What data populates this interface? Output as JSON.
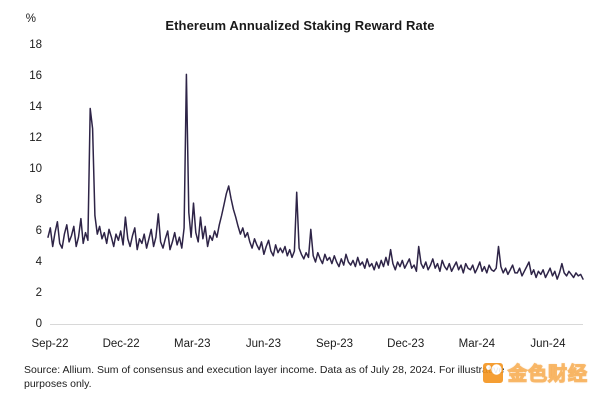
{
  "chart_data": {
    "type": "line",
    "title": "Ethereum Annualized Staking Reward Rate",
    "unit_label": "%",
    "ylabel": "%",
    "xlabel": "",
    "ylim": [
      0,
      18
    ],
    "y_ticks": [
      0,
      2,
      4,
      6,
      8,
      10,
      12,
      14,
      16,
      18
    ],
    "x_ticks": [
      "Sep-22",
      "Dec-22",
      "Mar-23",
      "Jun-23",
      "Sep-23",
      "Dec-23",
      "Mar-24",
      "Jun-24"
    ],
    "grid": false,
    "legend_position": "none",
    "line_color": "#2e2447",
    "axis_line_color": "#d8d8d8",
    "points_per_month": 10,
    "series": [
      {
        "name": "Annualized staking reward rate (%)",
        "values": [
          5.6,
          6.2,
          5.0,
          5.9,
          6.6,
          5.2,
          4.9,
          5.8,
          6.4,
          5.3,
          5.7,
          6.3,
          5.0,
          5.6,
          6.8,
          5.2,
          5.9,
          5.4,
          13.9,
          12.6,
          7.0,
          5.8,
          6.3,
          5.5,
          5.9,
          5.2,
          6.1,
          5.6,
          5.0,
          5.8,
          5.4,
          6.0,
          5.1,
          6.9,
          5.5,
          5.0,
          5.7,
          6.2,
          4.8,
          5.5,
          5.2,
          5.8,
          4.9,
          5.5,
          6.1,
          5.0,
          5.6,
          7.1,
          5.3,
          4.9,
          5.5,
          6.0,
          4.8,
          5.3,
          5.9,
          5.1,
          5.6,
          4.9,
          6.2,
          16.1,
          7.2,
          5.6,
          7.8,
          5.9,
          5.3,
          6.9,
          5.5,
          6.3,
          5.0,
          5.7,
          5.4,
          6.0,
          5.6,
          6.4,
          7.0,
          7.7,
          8.4,
          8.9,
          8.1,
          7.4,
          6.9,
          6.3,
          5.8,
          6.2,
          5.6,
          5.9,
          5.3,
          4.9,
          5.5,
          5.1,
          4.8,
          5.3,
          4.5,
          5.0,
          5.4,
          4.7,
          4.4,
          5.1,
          4.6,
          4.9,
          4.6,
          5.0,
          4.4,
          4.8,
          4.3,
          4.7,
          8.5,
          4.9,
          4.5,
          4.2,
          4.6,
          4.3,
          6.1,
          4.4,
          4.0,
          4.6,
          4.2,
          3.9,
          4.5,
          4.1,
          4.3,
          3.9,
          4.4,
          4.0,
          3.7,
          4.2,
          3.8,
          4.5,
          4.0,
          3.8,
          4.1,
          3.7,
          4.3,
          3.8,
          4.0,
          3.6,
          4.2,
          3.7,
          3.9,
          3.5,
          4.0,
          3.6,
          4.1,
          3.7,
          4.3,
          3.8,
          4.8,
          3.9,
          3.5,
          4.0,
          3.7,
          4.1,
          3.6,
          3.9,
          4.2,
          3.6,
          3.8,
          3.4,
          5.0,
          3.9,
          3.6,
          4.0,
          3.5,
          3.8,
          4.2,
          3.6,
          3.9,
          3.4,
          4.1,
          3.7,
          3.5,
          3.9,
          3.4,
          3.7,
          4.0,
          3.5,
          3.8,
          3.3,
          3.9,
          3.6,
          3.5,
          3.8,
          3.3,
          3.6,
          4.0,
          3.4,
          3.7,
          3.3,
          3.8,
          3.5,
          3.4,
          3.6,
          5.0,
          3.7,
          3.3,
          3.6,
          3.2,
          3.5,
          3.8,
          3.3,
          3.3,
          3.6,
          3.1,
          3.4,
          3.7,
          4.0,
          3.2,
          3.5,
          3.0,
          3.4,
          3.2,
          3.5,
          3.0,
          3.3,
          3.6,
          3.1,
          3.4,
          2.9,
          3.3,
          3.9,
          3.3,
          3.1,
          3.4,
          3.2,
          3.0,
          3.3,
          3.1,
          3.2,
          2.9
        ]
      }
    ]
  },
  "footer": {
    "line1": "Source: Allium. Sum of consensus and execution layer income. Data as of July 28, 2024. For illustrative",
    "line2": "purposes only."
  },
  "watermark": {
    "text": "金色财经",
    "logo_color": "#f4941d"
  }
}
